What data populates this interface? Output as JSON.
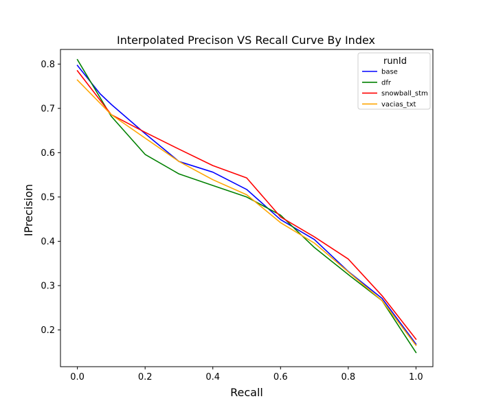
{
  "chart_data": {
    "type": "line",
    "title": "Interpolated Precison VS Recall Curve By Index",
    "xlabel": "Recall",
    "ylabel": "IPrecision",
    "xlim": [
      -0.05,
      1.05
    ],
    "ylim": [
      0.117,
      0.833
    ],
    "xticks": [
      "0.0",
      "0.2",
      "0.4",
      "0.6",
      "0.8",
      "1.0"
    ],
    "yticks": [
      "0.2",
      "0.3",
      "0.4",
      "0.5",
      "0.6",
      "0.7",
      "0.8"
    ],
    "grid": false,
    "legend": {
      "title": "runId",
      "position": "top-right"
    },
    "series": [
      {
        "name": "base",
        "color": "#0000ff",
        "x": [
          0.0,
          0.067,
          0.1,
          0.2,
          0.3,
          0.4,
          0.5,
          0.6,
          0.7,
          0.8,
          0.9,
          1.0
        ],
        "y": [
          0.797,
          0.733,
          0.709,
          0.643,
          0.58,
          0.556,
          0.517,
          0.449,
          0.404,
          0.332,
          0.271,
          0.168
        ]
      },
      {
        "name": "dfr",
        "color": "#008000",
        "x": [
          0.0,
          0.1,
          0.2,
          0.3,
          0.4,
          0.5,
          0.6,
          0.7,
          0.8,
          0.9,
          1.0
        ],
        "y": [
          0.81,
          0.682,
          0.596,
          0.552,
          0.526,
          0.5,
          0.459,
          0.386,
          0.325,
          0.266,
          0.149
        ]
      },
      {
        "name": "snowball_stm",
        "color": "#ff0000",
        "x": [
          0.0,
          0.1,
          0.2,
          0.3,
          0.4,
          0.5,
          0.6,
          0.7,
          0.8,
          0.9,
          1.0
        ],
        "y": [
          0.785,
          0.686,
          0.646,
          0.608,
          0.571,
          0.543,
          0.455,
          0.41,
          0.36,
          0.277,
          0.179
        ]
      },
      {
        "name": "vacias_txt",
        "color": "#ffa500",
        "x": [
          0.0,
          0.1,
          0.2,
          0.3,
          0.4,
          0.5,
          0.6,
          0.7,
          0.8,
          0.9,
          1.0
        ],
        "y": [
          0.764,
          0.686,
          0.633,
          0.58,
          0.539,
          0.505,
          0.442,
          0.396,
          0.331,
          0.266,
          0.165
        ]
      }
    ]
  }
}
